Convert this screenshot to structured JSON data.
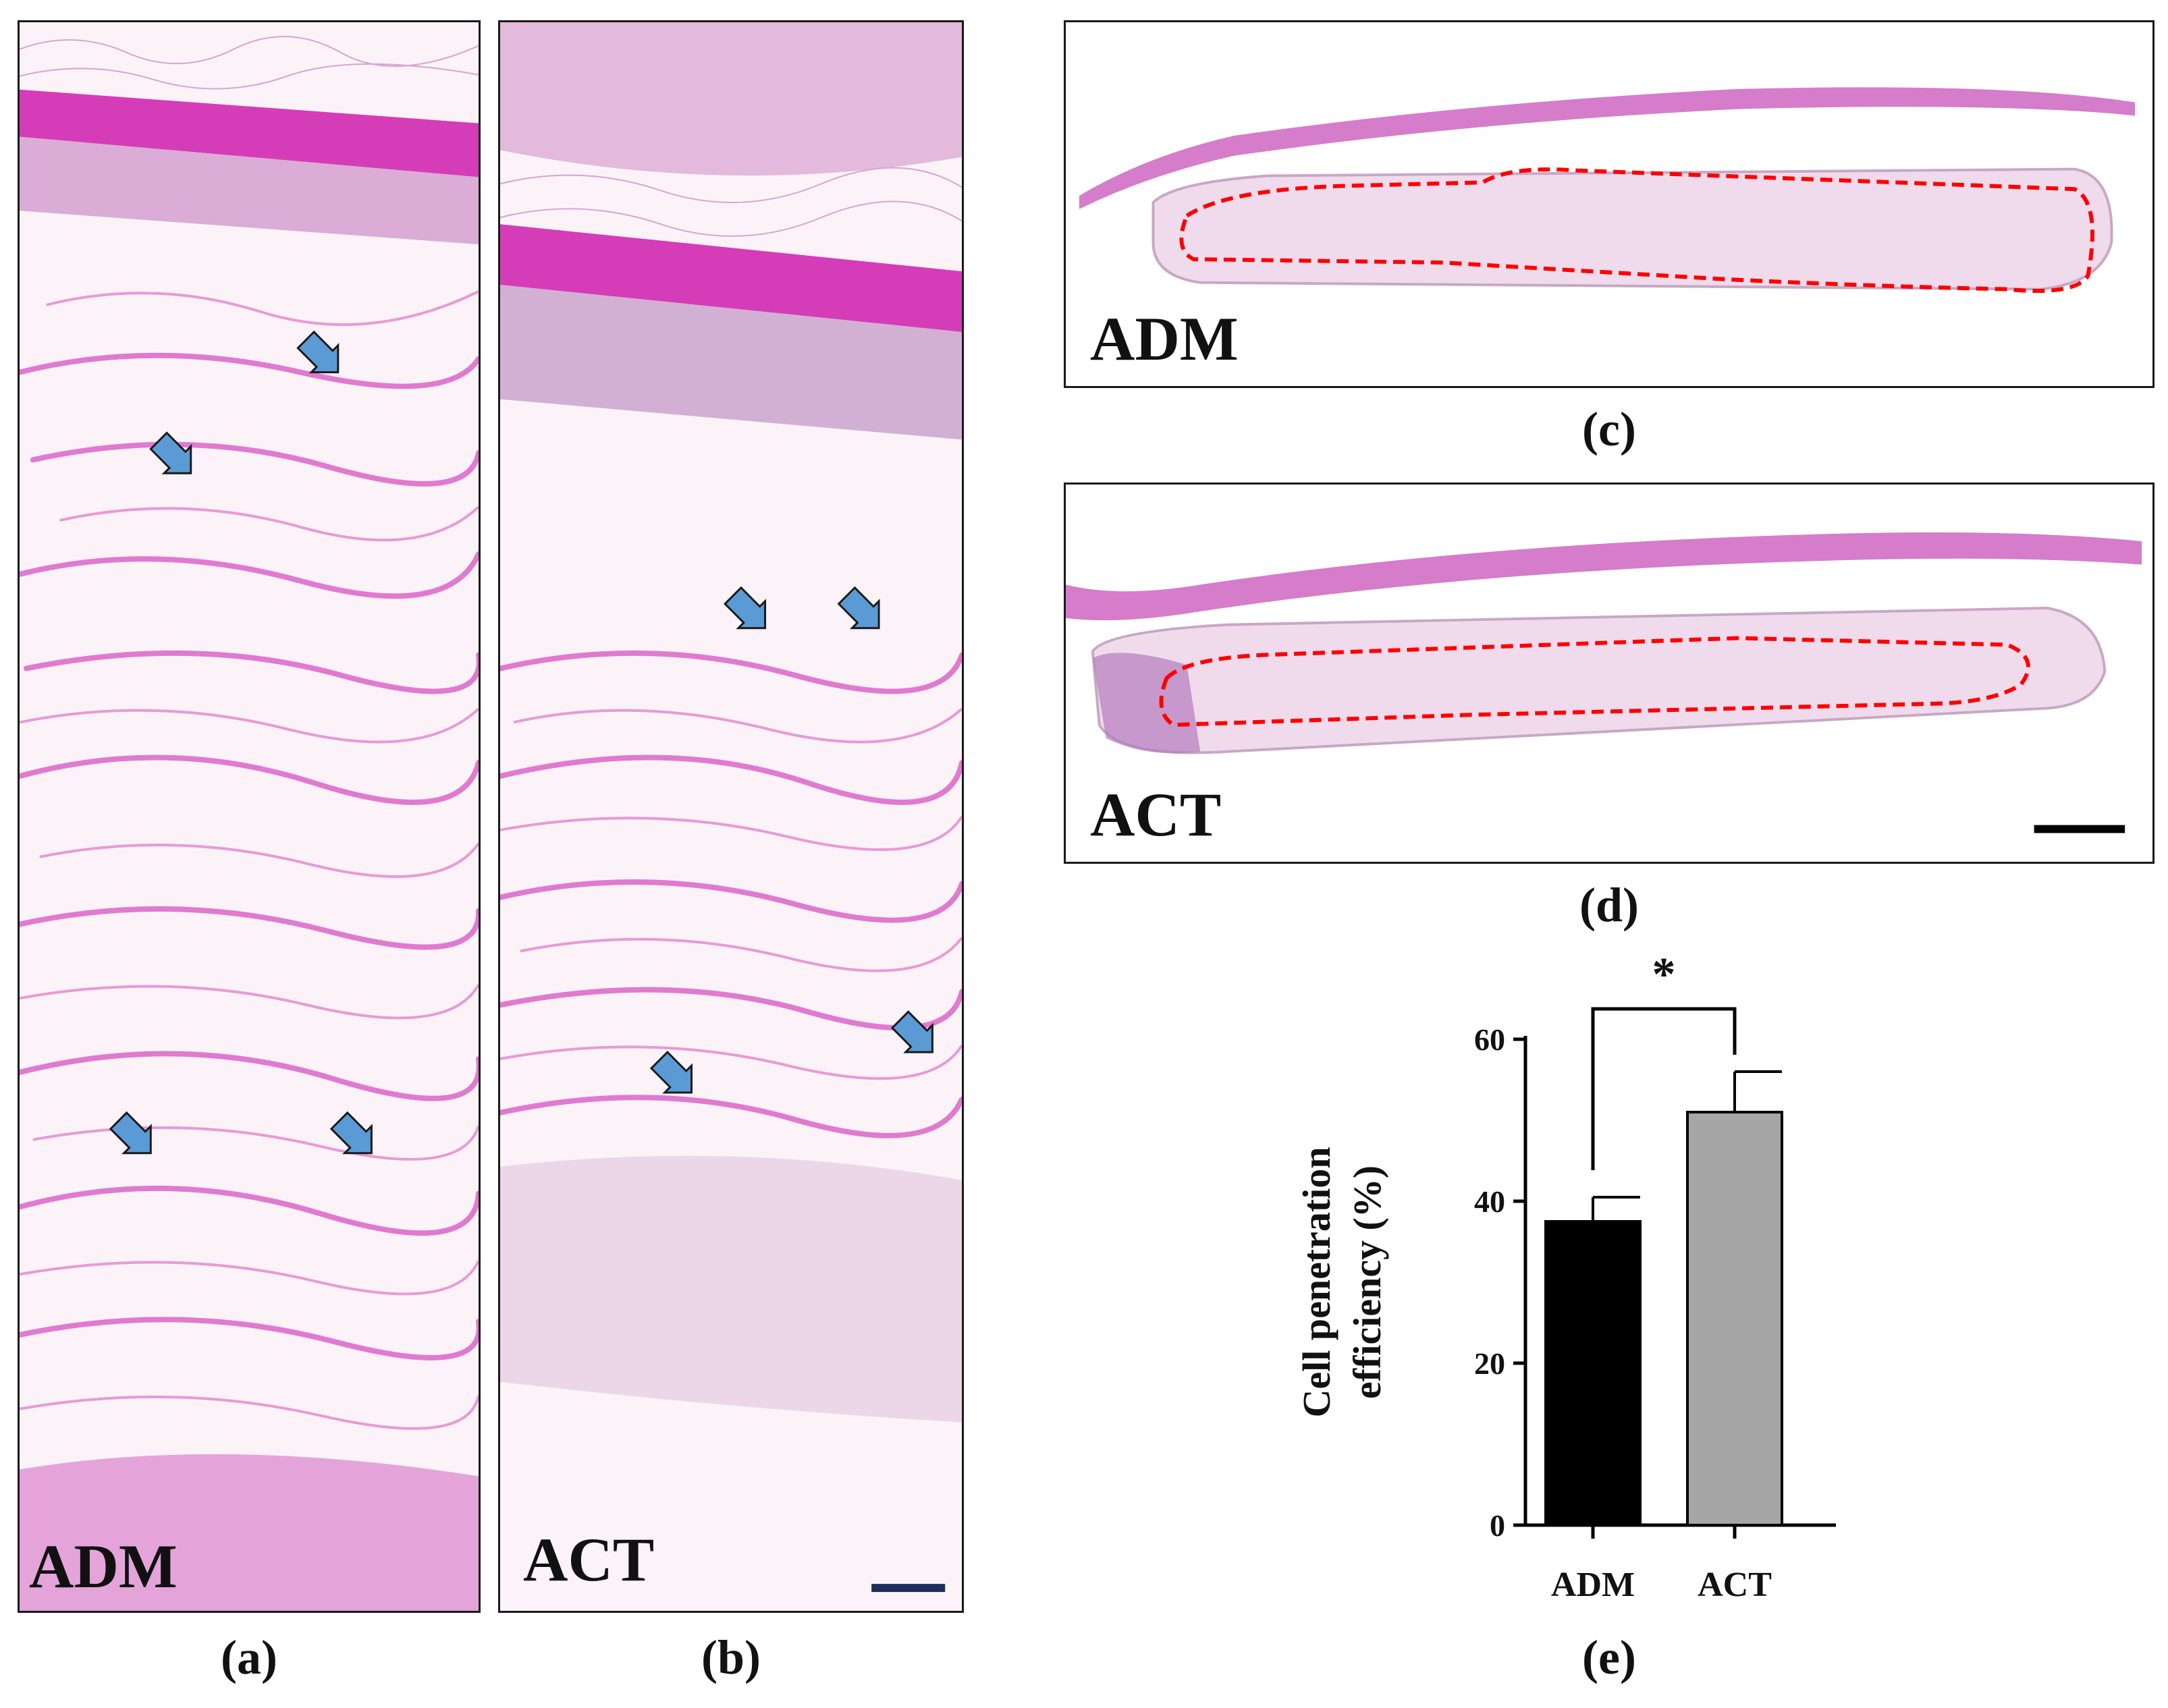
{
  "panels": {
    "a": {
      "caption": "(a)",
      "label": "ADM"
    },
    "b": {
      "caption": "(b)",
      "label": "ACT"
    },
    "c": {
      "caption": "(c)",
      "label": "ADM"
    },
    "d": {
      "caption": "(d)",
      "label": "ACT"
    },
    "e": {
      "caption": "(e)"
    }
  },
  "colors": {
    "tissue_pink": "#e89ad6",
    "collagen": "#e07ad0",
    "muscle": "#d53cb8",
    "arrow": "#5b9bd5",
    "outline_dashed": "#ff0000",
    "scale_bar_ab": "#1f2d5c",
    "scale_bar_cd": "#000000",
    "bar_adm": "#000000",
    "bar_act": "#a6a6a6"
  },
  "chart_data": {
    "type": "bar",
    "categories": [
      "ADM",
      "ACT"
    ],
    "values": [
      37.5,
      51
    ],
    "errors": [
      3,
      5
    ],
    "ylabel_line1": "Cell penetration",
    "ylabel_line2": "efficiency (%)",
    "ylim": [
      0,
      60
    ],
    "yticks": [
      0,
      20,
      40,
      60
    ],
    "significance": {
      "pair": [
        "ADM",
        "ACT"
      ],
      "marker": "*"
    }
  }
}
